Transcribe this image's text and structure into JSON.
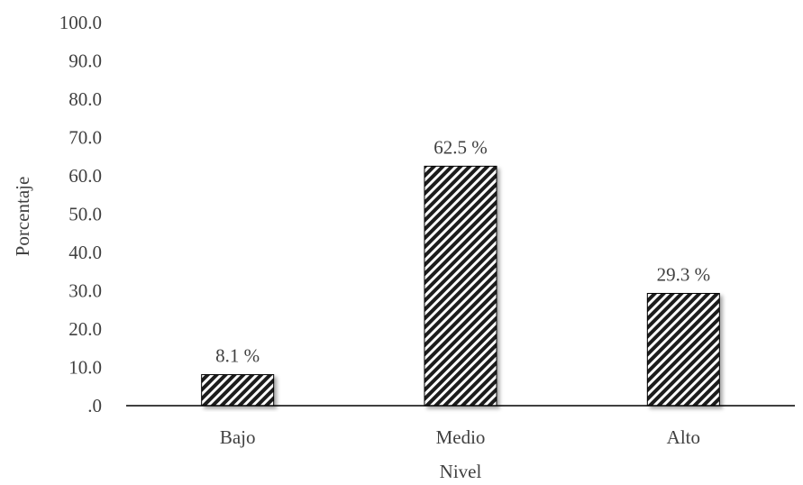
{
  "chart_data": {
    "type": "bar",
    "categories": [
      "Bajo",
      "Medio",
      "Alto"
    ],
    "values": [
      8.1,
      62.5,
      29.3
    ],
    "data_labels": [
      "8.1 %",
      "62.5 %",
      "29.3 %"
    ],
    "title": "",
    "xlabel": "Nivel",
    "ylabel": "Porcentaje",
    "ylim": [
      0,
      100
    ],
    "yticks": [
      0,
      10,
      20,
      30,
      40,
      50,
      60,
      70,
      80,
      90,
      100
    ],
    "ytick_labels": [
      ".0",
      "10.0",
      "20.0",
      "30.0",
      "40.0",
      "50.0",
      "60.0",
      "70.0",
      "80.0",
      "90.0",
      "100.0"
    ],
    "grid": false,
    "legend": "none",
    "bar_fill": "diagonal-stripes",
    "colors": {
      "bar_stripe": "#1a1a1a",
      "bar_background": "#ffffff",
      "axis": "#000000",
      "text": "#404040"
    }
  }
}
